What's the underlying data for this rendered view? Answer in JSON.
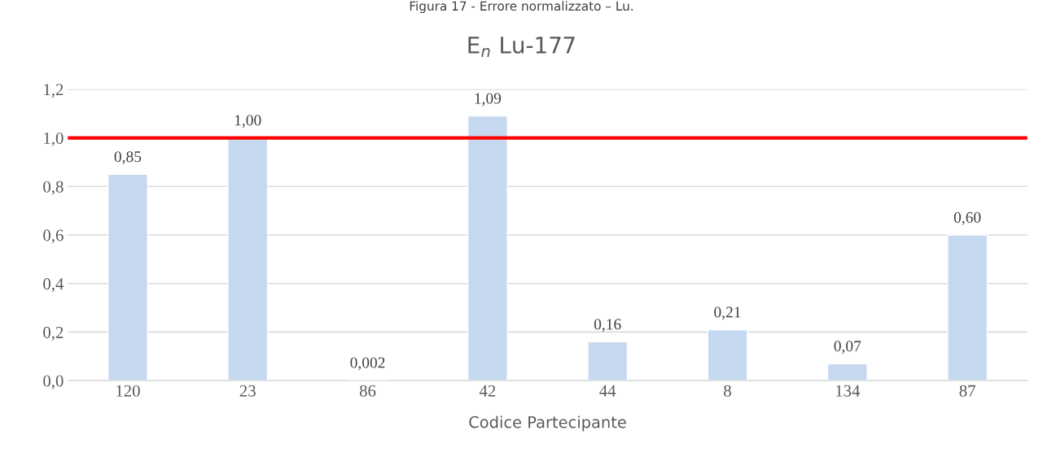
{
  "chart_data": {
    "type": "bar",
    "title": "E$_{n}$ Lu-177",
    "xlabel": "Codice Partecipante",
    "annotations": [
      "Figura 17 - Errore normalizzato – Lu."
    ],
    "categories": [
      "120",
      "23",
      "86",
      "42",
      "44",
      "8",
      "134",
      "87"
    ],
    "values": [
      0.85,
      1.0,
      0.002,
      1.09,
      0.16,
      0.21,
      0.07,
      0.6
    ],
    "value_labels": [
      "0,85",
      "1,00",
      "0,002",
      "1,09",
      "0,16",
      "0,21",
      "0,07",
      "0,60"
    ],
    "color": "#c6d8f0",
    "ylim": [
      0,
      1.2
    ],
    "yticks": [
      {
        "value": 0,
        "label": "0,0"
      },
      {
        "value": 0.2,
        "label": "0,2"
      },
      {
        "value": 0.4,
        "label": "0,4"
      },
      {
        "value": 0.6,
        "label": "0,6"
      },
      {
        "value": 0.8,
        "label": "0,8"
      },
      {
        "value": 1.0,
        "label": "1,0"
      },
      {
        "value": 1.2,
        "label": "1,2"
      }
    ],
    "ref_lines": [
      {
        "axis": "y",
        "value": 1.0,
        "color": "#ff0000",
        "line_style": "solid"
      }
    ],
    "grid": "y",
    "legend": false
  }
}
